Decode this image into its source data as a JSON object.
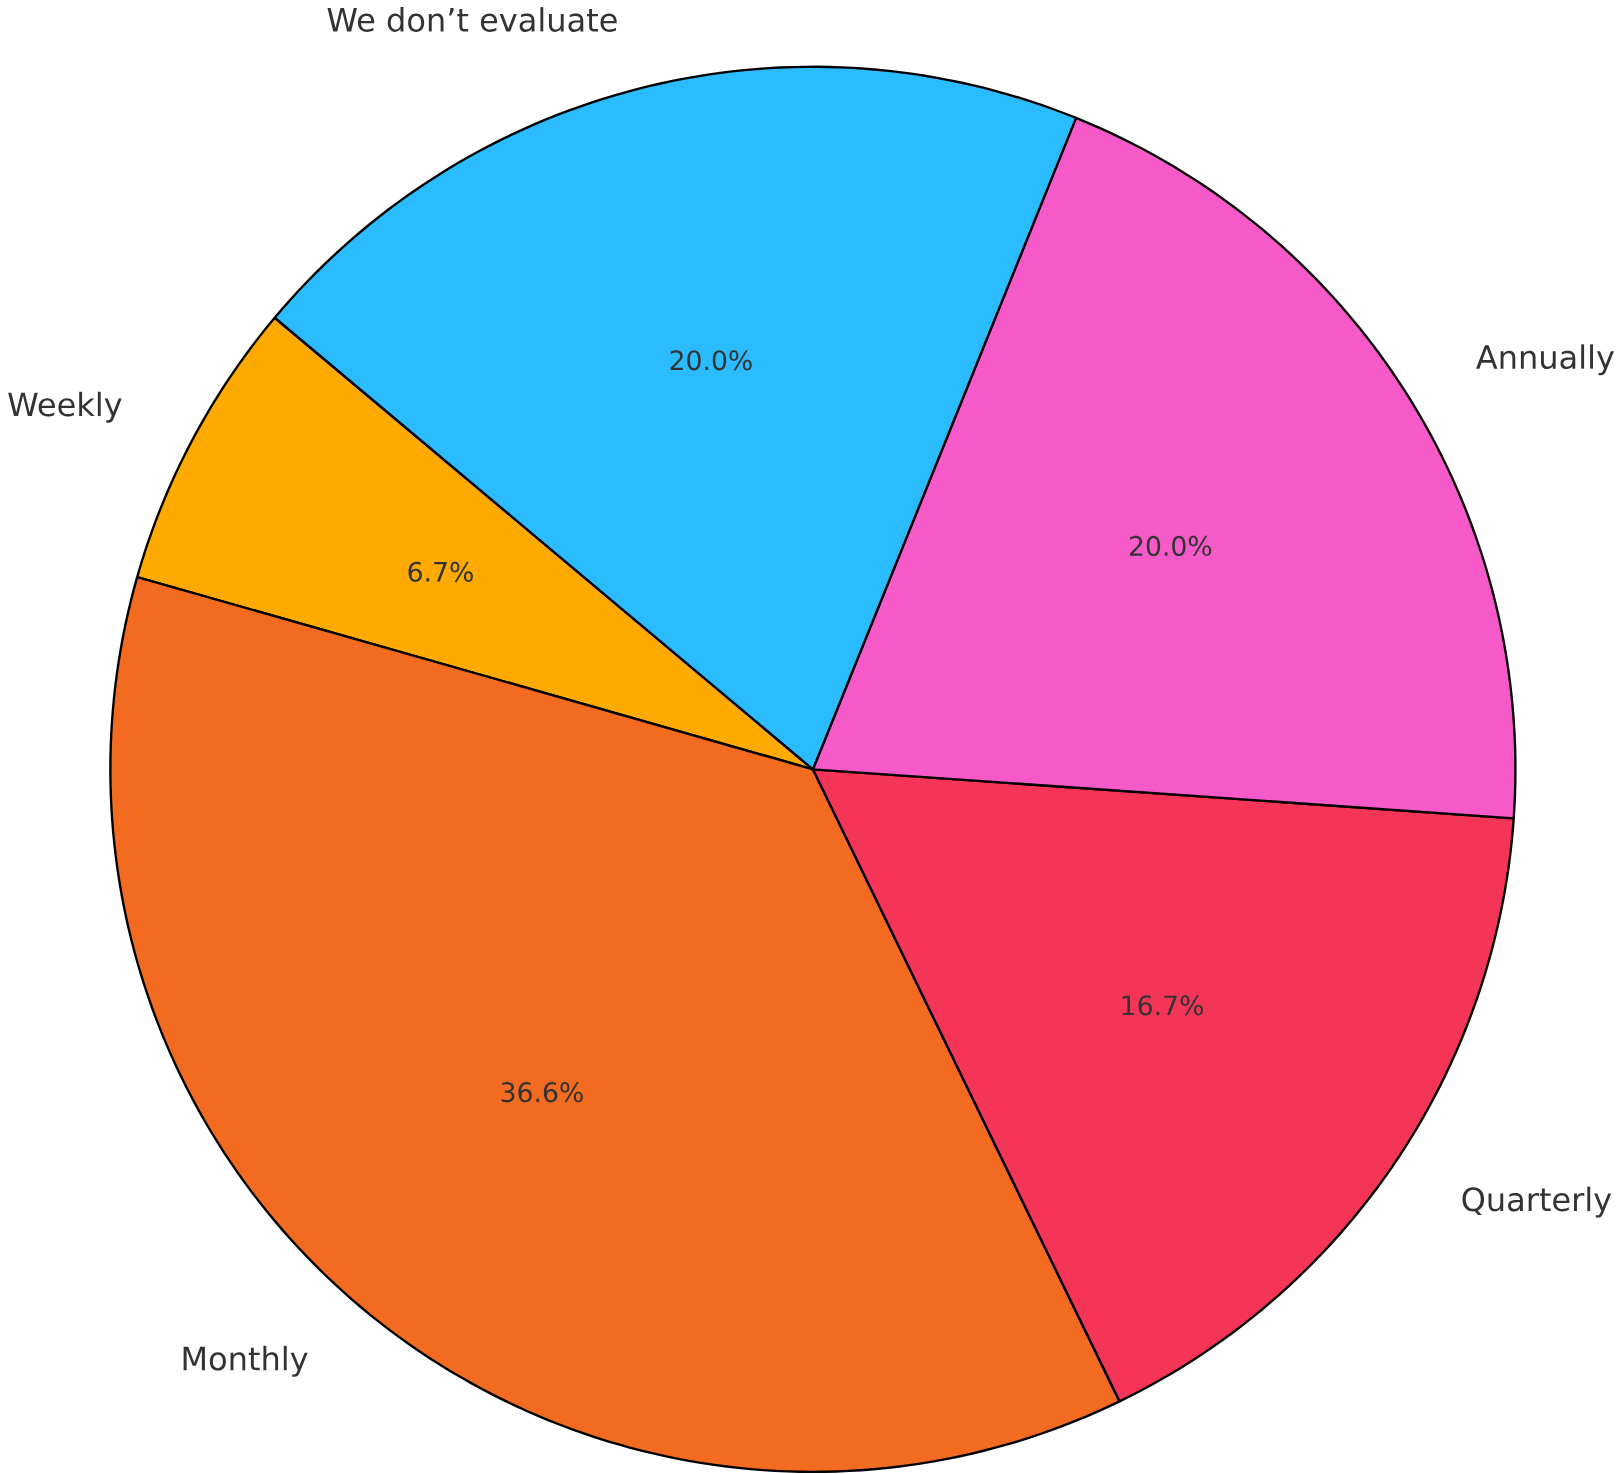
{
  "chart_data": {
    "type": "pie",
    "categories": [
      "Weekly",
      "Monthly",
      "Quarterly",
      "Annually",
      "We don’t evaluate"
    ],
    "values": [
      6.7,
      36.6,
      16.7,
      20.0,
      20.0
    ],
    "colors": [
      "#ffaa00",
      "#f26b21",
      "#f43557",
      "#f65ac8",
      "#2bbcff"
    ],
    "value_labels": [
      "6.7%",
      "36.6%",
      "16.7%",
      "20.0%",
      "20.0%"
    ]
  }
}
